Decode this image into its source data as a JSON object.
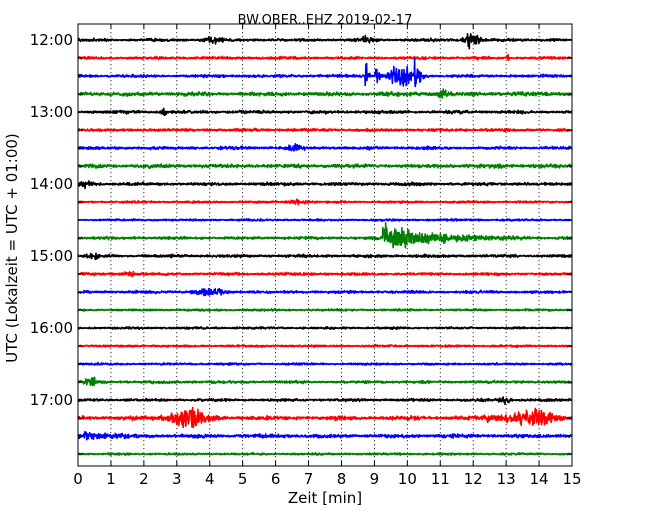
{
  "chart_data": {
    "type": "line",
    "title": "BW.OBER..EHZ 2019-02-17",
    "xlabel": "Zeit  [min]",
    "ylabel": "UTC (Lokalzeit = UTC + 01:00)",
    "xlim": [
      0,
      15
    ],
    "xticks": [
      0,
      1,
      2,
      3,
      4,
      5,
      6,
      7,
      8,
      9,
      10,
      11,
      12,
      13,
      14,
      15
    ],
    "xtick_labels": [
      "0",
      "1",
      "2",
      "3",
      "4",
      "5",
      "6",
      "7",
      "8",
      "9",
      "10",
      "11",
      "12",
      "13",
      "14",
      "15"
    ],
    "row_interval_min": 15,
    "ytick_labels": [
      "12:00",
      "13:00",
      "14:00",
      "15:00",
      "16:00",
      "17:00"
    ],
    "row_colors": [
      "#000000",
      "#ff0000",
      "#0000ff",
      "#008000"
    ],
    "grid_x": true,
    "grid_style": "dotted",
    "rows": [
      {
        "start": "12:00",
        "color": "#000000",
        "noise": 0.3,
        "events": [
          {
            "t": 4.1,
            "amp": 0.9,
            "dur": 0.35,
            "kind": "burst"
          },
          {
            "t": 8.8,
            "amp": 0.7,
            "dur": 0.3,
            "kind": "burst"
          },
          {
            "t": 11.95,
            "amp": 1.9,
            "dur": 0.35,
            "kind": "burst"
          }
        ]
      },
      {
        "start": "12:15",
        "color": "#ff0000",
        "noise": 0.28,
        "events": [
          {
            "t": 13.05,
            "amp": 2.4,
            "dur": 0.05,
            "kind": "spike"
          }
        ]
      },
      {
        "start": "12:30",
        "color": "#0000ff",
        "noise": 0.3,
        "events": [
          {
            "t": 8.75,
            "amp": 5.5,
            "dur": 0.15,
            "kind": "quake"
          },
          {
            "t": 9.05,
            "amp": 4.2,
            "dur": 0.25,
            "kind": "quake"
          },
          {
            "t": 9.6,
            "amp": 1.8,
            "dur": 0.3,
            "kind": "burst"
          },
          {
            "t": 9.95,
            "amp": 2.5,
            "dur": 0.3,
            "kind": "burst"
          },
          {
            "t": 10.25,
            "amp": 3.8,
            "dur": 0.4,
            "kind": "quake"
          }
        ]
      },
      {
        "start": "12:45",
        "color": "#008000",
        "noise": 0.42,
        "events": [
          {
            "t": 11.1,
            "amp": 1.3,
            "dur": 0.2,
            "kind": "burst"
          }
        ]
      },
      {
        "start": "13:00",
        "color": "#000000",
        "noise": 0.32,
        "events": [
          {
            "t": 2.6,
            "amp": 1.0,
            "dur": 0.12,
            "kind": "burst"
          }
        ]
      },
      {
        "start": "13:15",
        "color": "#ff0000",
        "noise": 0.3,
        "events": []
      },
      {
        "start": "13:30",
        "color": "#0000ff",
        "noise": 0.32,
        "events": [
          {
            "t": 6.6,
            "amp": 0.7,
            "dur": 0.3,
            "kind": "burst"
          }
        ]
      },
      {
        "start": "13:45",
        "color": "#008000",
        "noise": 0.38,
        "events": []
      },
      {
        "start": "14:00",
        "color": "#000000",
        "noise": 0.32,
        "events": [
          {
            "t": 0.2,
            "amp": 0.7,
            "dur": 0.3,
            "kind": "burst"
          }
        ]
      },
      {
        "start": "14:15",
        "color": "#ff0000",
        "noise": 0.22,
        "events": [
          {
            "t": 6.7,
            "amp": 0.6,
            "dur": 0.4,
            "kind": "burst"
          }
        ]
      },
      {
        "start": "14:30",
        "color": "#0000ff",
        "noise": 0.22,
        "events": []
      },
      {
        "start": "14:45",
        "color": "#008000",
        "noise": 0.3,
        "events": [
          {
            "t": 9.28,
            "amp": 3.2,
            "dur": 4.5,
            "kind": "quake"
          }
        ]
      },
      {
        "start": "15:00",
        "color": "#000000",
        "noise": 0.3,
        "events": [
          {
            "t": 0.5,
            "amp": 0.6,
            "dur": 0.3,
            "kind": "burst"
          }
        ]
      },
      {
        "start": "15:15",
        "color": "#ff0000",
        "noise": 0.28,
        "events": [
          {
            "t": 1.5,
            "amp": 0.7,
            "dur": 0.3,
            "kind": "burst"
          }
        ]
      },
      {
        "start": "15:30",
        "color": "#0000ff",
        "noise": 0.28,
        "events": [
          {
            "t": 4.0,
            "amp": 0.9,
            "dur": 0.7,
            "kind": "burst"
          }
        ]
      },
      {
        "start": "15:45",
        "color": "#008000",
        "noise": 0.22,
        "events": []
      },
      {
        "start": "16:00",
        "color": "#000000",
        "noise": 0.22,
        "events": []
      },
      {
        "start": "16:15",
        "color": "#ff0000",
        "noise": 0.22,
        "events": []
      },
      {
        "start": "16:30",
        "color": "#0000ff",
        "noise": 0.22,
        "events": []
      },
      {
        "start": "16:45",
        "color": "#008000",
        "noise": 0.28,
        "events": [
          {
            "t": 0.4,
            "amp": 0.8,
            "dur": 0.3,
            "kind": "burst"
          }
        ]
      },
      {
        "start": "17:00",
        "color": "#000000",
        "noise": 0.28,
        "events": [
          {
            "t": 12.95,
            "amp": 0.8,
            "dur": 0.25,
            "kind": "burst"
          }
        ]
      },
      {
        "start": "17:15",
        "color": "#ff0000",
        "noise": 0.4,
        "events": [
          {
            "t": 3.3,
            "amp": 2.2,
            "dur": 0.8,
            "kind": "burst"
          },
          {
            "t": 12.8,
            "amp": 0.8,
            "dur": 0.9,
            "kind": "burst"
          },
          {
            "t": 13.9,
            "amp": 2.0,
            "dur": 0.8,
            "kind": "burst"
          }
        ]
      },
      {
        "start": "17:30",
        "color": "#0000ff",
        "noise": 0.38,
        "events": [
          {
            "t": 0.4,
            "amp": 0.8,
            "dur": 1.2,
            "kind": "burst"
          }
        ]
      },
      {
        "start": "17:45",
        "color": "#008000",
        "noise": 0.22,
        "events": []
      }
    ]
  }
}
